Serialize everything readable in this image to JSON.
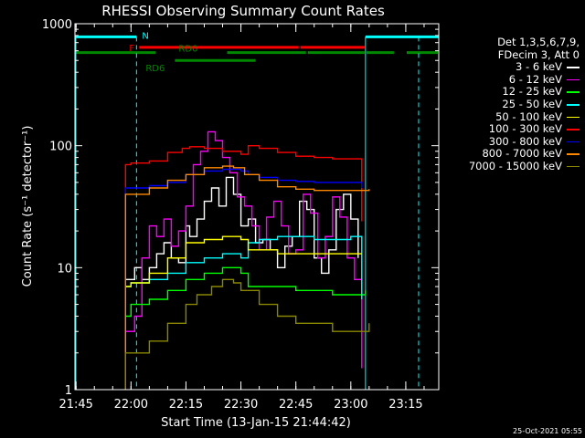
{
  "chart_data": {
    "type": "line",
    "title": "RHESSI Observing Summary Count Rates",
    "xlabel": "Start Time (13-Jan-15 21:44:42)",
    "ylabel": "Count Rate (s⁻¹ detector⁻¹)",
    "yscale": "log",
    "ylim": [
      1,
      1000
    ],
    "xlim": [
      "21:44:42",
      "23:24:00"
    ],
    "x_ticks": [
      "21:45",
      "22:00",
      "22:15",
      "22:30",
      "22:45",
      "23:00",
      "23:15"
    ],
    "y_ticks": [
      "1",
      "10",
      "100",
      "1000"
    ],
    "grid": false,
    "legend_position": "right",
    "legend_header": [
      "Det 1,3,5,6,7,9,",
      "FDecim 3, Att 0"
    ],
    "series": [
      {
        "name": "3 - 6 keV",
        "color": "#ffffff",
        "points": [
          [
            "21:58:30",
            8
          ],
          [
            "22:01",
            10
          ],
          [
            "22:03",
            8
          ],
          [
            "22:05",
            10
          ],
          [
            "22:07",
            13
          ],
          [
            "22:09",
            16
          ],
          [
            "22:11",
            12
          ],
          [
            "22:13",
            11
          ],
          [
            "22:15",
            22
          ],
          [
            "22:16",
            18
          ],
          [
            "22:18",
            25
          ],
          [
            "22:20",
            35
          ],
          [
            "22:22",
            45
          ],
          [
            "22:24",
            32
          ],
          [
            "22:26",
            55
          ],
          [
            "22:28",
            40
          ],
          [
            "22:30",
            22
          ],
          [
            "22:32",
            25
          ],
          [
            "22:34",
            16
          ],
          [
            "22:36",
            17
          ],
          [
            "22:38",
            14
          ],
          [
            "22:40",
            10
          ],
          [
            "22:42",
            15
          ],
          [
            "22:44",
            18
          ],
          [
            "22:46",
            35
          ],
          [
            "22:48",
            30
          ],
          [
            "22:50",
            12
          ],
          [
            "22:52",
            9
          ],
          [
            "22:54",
            14
          ],
          [
            "22:56",
            30
          ],
          [
            "22:58",
            40
          ],
          [
            "23:00",
            25
          ],
          [
            "23:02",
            12
          ]
        ]
      },
      {
        "name": "6 - 12 keV",
        "color": "#ff00ff",
        "points": [
          [
            "21:58:30",
            3
          ],
          [
            "22:01",
            4
          ],
          [
            "22:03",
            12
          ],
          [
            "22:05",
            22
          ],
          [
            "22:07",
            18
          ],
          [
            "22:09",
            25
          ],
          [
            "22:11",
            15
          ],
          [
            "22:13",
            20
          ],
          [
            "22:15",
            32
          ],
          [
            "22:17",
            70
          ],
          [
            "22:19",
            90
          ],
          [
            "22:21",
            130
          ],
          [
            "22:23",
            110
          ],
          [
            "22:25",
            80
          ],
          [
            "22:27",
            60
          ],
          [
            "22:29",
            38
          ],
          [
            "22:31",
            32
          ],
          [
            "22:33",
            22
          ],
          [
            "22:35",
            14
          ],
          [
            "22:37",
            26
          ],
          [
            "22:39",
            35
          ],
          [
            "22:41",
            22
          ],
          [
            "22:43",
            13
          ],
          [
            "22:45",
            14
          ],
          [
            "22:47",
            40
          ],
          [
            "22:49",
            28
          ],
          [
            "22:51",
            12
          ],
          [
            "22:53",
            18
          ],
          [
            "22:55",
            38
          ],
          [
            "22:57",
            26
          ],
          [
            "22:59",
            12
          ],
          [
            "23:01",
            8
          ],
          [
            "23:03",
            1.5
          ]
        ]
      },
      {
        "name": "12 - 25 keV",
        "color": "#00ff00",
        "points": [
          [
            "21:58:30",
            4
          ],
          [
            "22:00",
            5
          ],
          [
            "22:05",
            5.5
          ],
          [
            "22:10",
            6.5
          ],
          [
            "22:15",
            8
          ],
          [
            "22:20",
            9
          ],
          [
            "22:25",
            10
          ],
          [
            "22:30",
            9
          ],
          [
            "22:32",
            7
          ],
          [
            "22:35",
            7
          ],
          [
            "22:40",
            7
          ],
          [
            "22:45",
            6.5
          ],
          [
            "22:50",
            6.5
          ],
          [
            "22:55",
            6
          ],
          [
            "23:00",
            6
          ],
          [
            "23:04",
            6.5
          ]
        ]
      },
      {
        "name": "25 - 50 keV",
        "color": "#00ffff",
        "points": [
          [
            "21:58:30",
            7
          ],
          [
            "22:00",
            7.5
          ],
          [
            "22:05",
            8
          ],
          [
            "22:10",
            9
          ],
          [
            "22:15",
            11
          ],
          [
            "22:20",
            12
          ],
          [
            "22:25",
            13
          ],
          [
            "22:30",
            12
          ],
          [
            "22:32",
            16
          ],
          [
            "22:35",
            17
          ],
          [
            "22:40",
            18
          ],
          [
            "22:45",
            18
          ],
          [
            "22:50",
            17
          ],
          [
            "22:55",
            17
          ],
          [
            "23:00",
            18
          ],
          [
            "23:03",
            5.5
          ]
        ]
      },
      {
        "name": "50 - 100 keV",
        "color": "#ffff00",
        "points": [
          [
            "21:58:30",
            7
          ],
          [
            "22:00",
            7.5
          ],
          [
            "22:05",
            9
          ],
          [
            "22:10",
            12
          ],
          [
            "22:15",
            16
          ],
          [
            "22:20",
            17
          ],
          [
            "22:25",
            18
          ],
          [
            "22:30",
            17
          ],
          [
            "22:32",
            14
          ],
          [
            "22:35",
            14
          ],
          [
            "22:40",
            13
          ],
          [
            "22:45",
            13
          ],
          [
            "22:50",
            13
          ],
          [
            "22:55",
            13
          ],
          [
            "23:00",
            13
          ],
          [
            "23:03",
            13
          ]
        ]
      },
      {
        "name": "100 - 300 keV",
        "color": "#ff0000",
        "points": [
          [
            "21:58:30",
            70
          ],
          [
            "22:00",
            72
          ],
          [
            "22:05",
            75
          ],
          [
            "22:10",
            88
          ],
          [
            "22:14",
            95
          ],
          [
            "22:16",
            98
          ],
          [
            "22:20",
            95
          ],
          [
            "22:25",
            90
          ],
          [
            "22:30",
            85
          ],
          [
            "22:32",
            100
          ],
          [
            "22:35",
            95
          ],
          [
            "22:40",
            88
          ],
          [
            "22:45",
            82
          ],
          [
            "22:50",
            80
          ],
          [
            "22:55",
            78
          ],
          [
            "23:00",
            78
          ],
          [
            "23:03",
            24
          ]
        ]
      },
      {
        "name": "300 - 800 keV",
        "color": "#0000ff",
        "points": [
          [
            "21:58:30",
            45
          ],
          [
            "22:00",
            45
          ],
          [
            "22:05",
            47
          ],
          [
            "22:10",
            50
          ],
          [
            "22:15",
            58
          ],
          [
            "22:20",
            62
          ],
          [
            "22:25",
            64
          ],
          [
            "22:30",
            62
          ],
          [
            "22:32",
            58
          ],
          [
            "22:35",
            55
          ],
          [
            "22:40",
            52
          ],
          [
            "22:45",
            51
          ],
          [
            "22:50",
            50
          ],
          [
            "22:55",
            50
          ],
          [
            "23:00",
            50
          ],
          [
            "23:03",
            45
          ]
        ]
      },
      {
        "name": "800 - 7000 keV",
        "color": "#ff8800",
        "points": [
          [
            "21:58:30",
            40
          ],
          [
            "22:00",
            40
          ],
          [
            "22:05",
            45
          ],
          [
            "22:10",
            52
          ],
          [
            "22:15",
            58
          ],
          [
            "22:20",
            66
          ],
          [
            "22:25",
            68
          ],
          [
            "22:28",
            66
          ],
          [
            "22:31",
            58
          ],
          [
            "22:35",
            52
          ],
          [
            "22:40",
            46
          ],
          [
            "22:45",
            44
          ],
          [
            "22:50",
            43
          ],
          [
            "22:55",
            43
          ],
          [
            "23:00",
            43
          ],
          [
            "23:05",
            44
          ]
        ]
      },
      {
        "name": "7000 - 15000 keV",
        "color": "#888800",
        "points": [
          [
            "21:58:30",
            2
          ],
          [
            "22:00",
            2
          ],
          [
            "22:05",
            2.5
          ],
          [
            "22:10",
            3.5
          ],
          [
            "22:15",
            5
          ],
          [
            "22:18",
            6
          ],
          [
            "22:22",
            7
          ],
          [
            "22:25",
            8
          ],
          [
            "22:28",
            7.5
          ],
          [
            "22:30",
            6.5
          ],
          [
            "22:35",
            5
          ],
          [
            "22:40",
            4
          ],
          [
            "22:45",
            3.5
          ],
          [
            "22:50",
            3.5
          ],
          [
            "22:55",
            3
          ],
          [
            "23:00",
            3
          ],
          [
            "23:05",
            3.5
          ]
        ]
      }
    ],
    "annotations": {
      "N": {
        "label": "N",
        "color": "#00ffff",
        "ranges": [
          [
            "21:44:42",
            "22:01:30"
          ],
          [
            "23:04",
            "23:24"
          ]
        ]
      },
      "F": {
        "label": "F",
        "color": "#ff0000",
        "ranges": [
          [
            "22:02",
            "22:46"
          ],
          [
            "22:46",
            "23:04"
          ]
        ]
      },
      "RD0": {
        "label": "RD0",
        "color": "#008800",
        "ranges": [
          [
            "21:44:42",
            "22:07"
          ],
          [
            "22:26",
            "22:48"
          ],
          [
            "22:48",
            "23:04"
          ],
          [
            "23:04",
            "23:12"
          ],
          [
            "23:15",
            "23:24"
          ]
        ]
      },
      "RD6": {
        "label": "RD6",
        "color": "#008800",
        "ranges": [
          [
            "22:12",
            "22:34"
          ]
        ]
      },
      "saa_lines": [
        "22:01:30",
        "23:18:30"
      ]
    }
  },
  "timestamp": "25-Oct-2021 05:55"
}
